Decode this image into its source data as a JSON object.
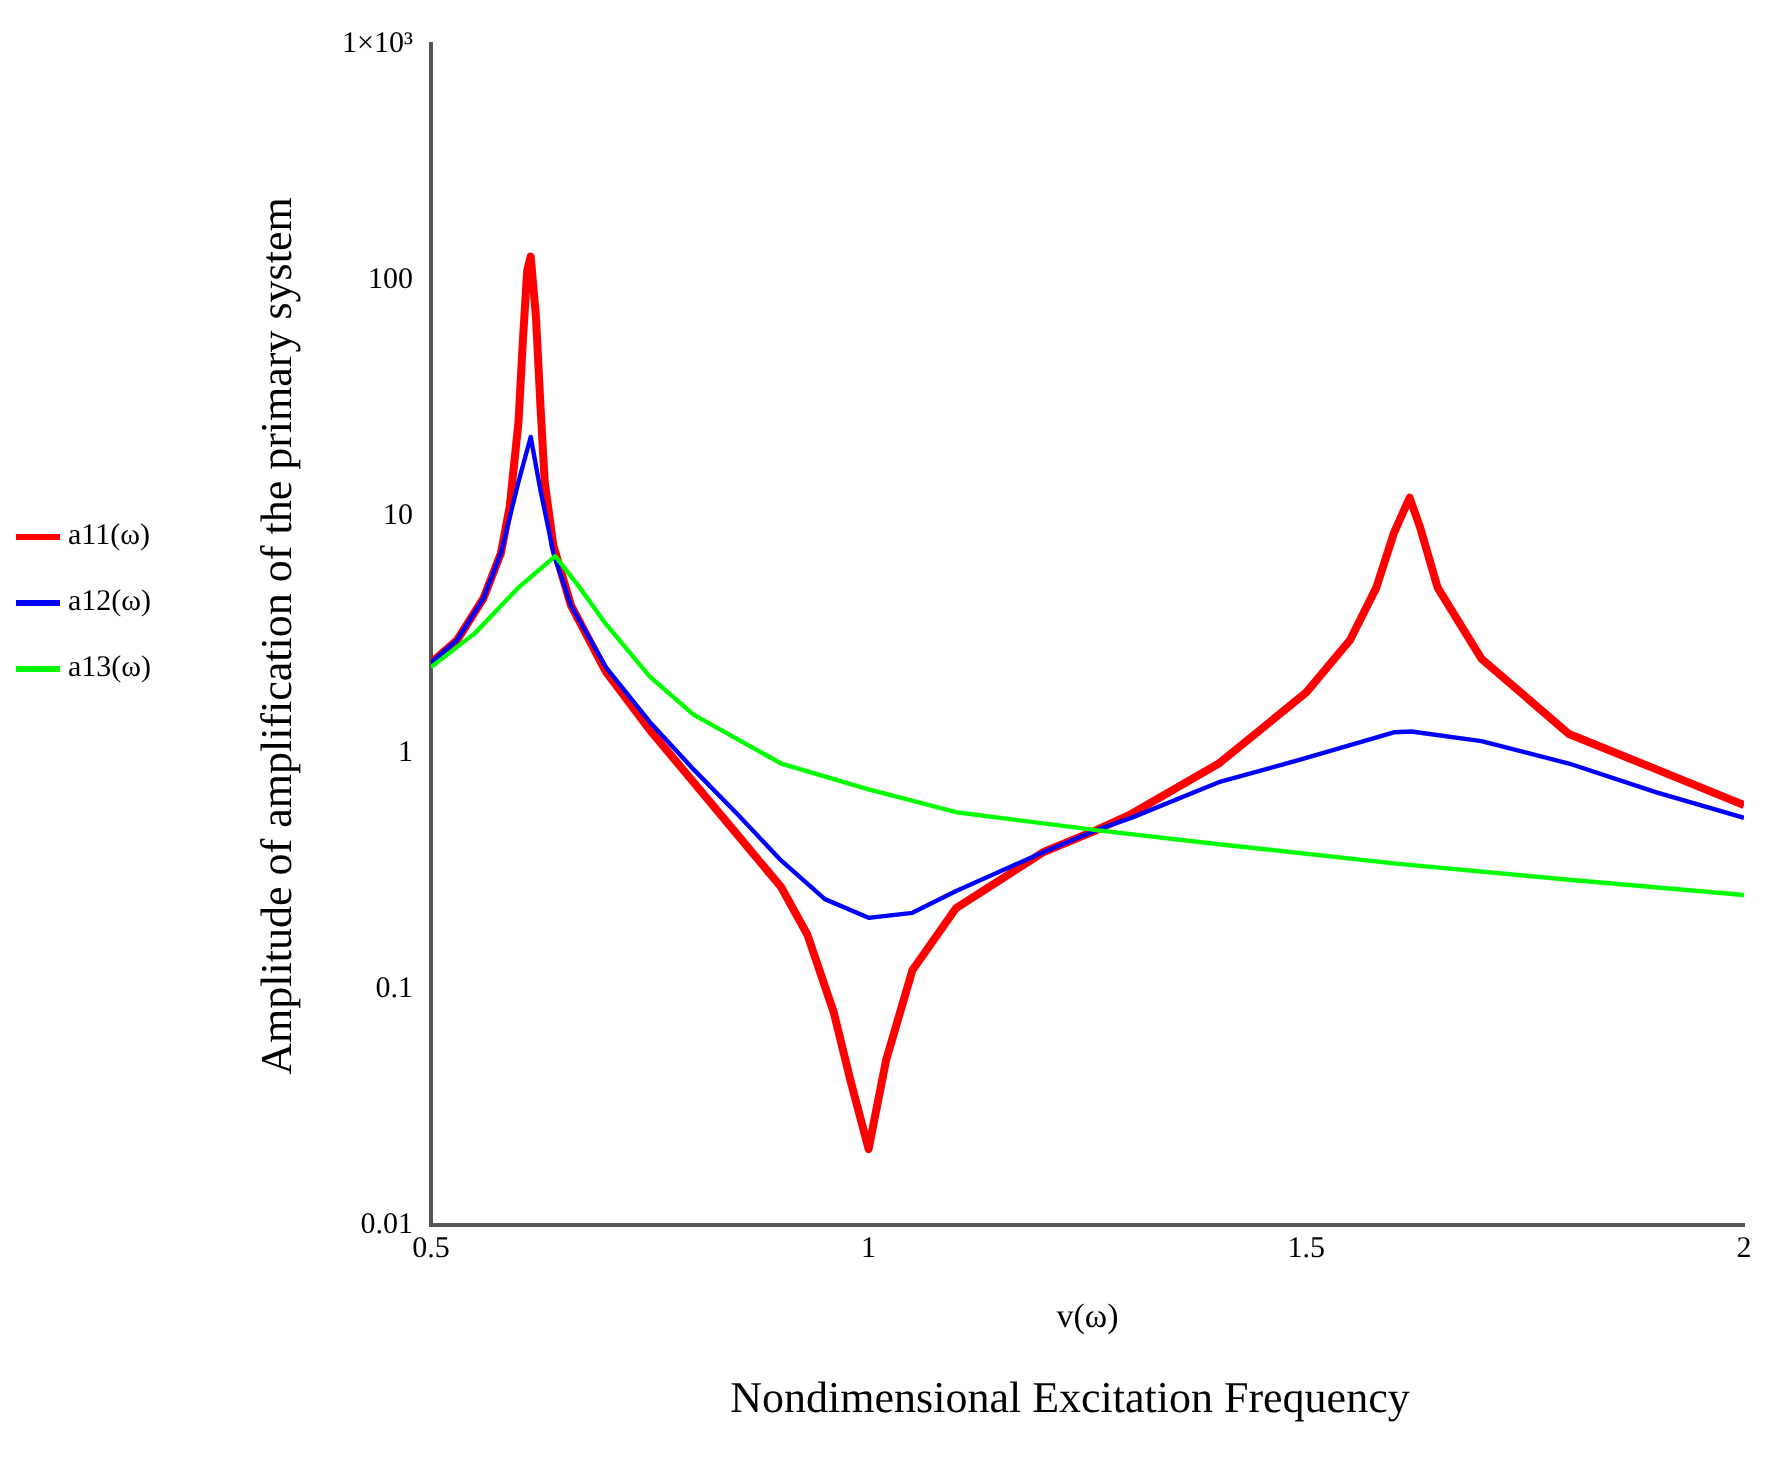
{
  "chart_data": {
    "type": "line",
    "xlabel": "v(ω)",
    "ylabel": "Amplitude of amplification of the primary system",
    "annotations": [
      "Nondimensional Excitation Frequency"
    ],
    "series": [
      {
        "name": "a11(ω)",
        "color": "#ff0000",
        "x": [
          0.5,
          0.53,
          0.56,
          0.58,
          0.59,
          0.6,
          0.605,
          0.61,
          0.614,
          0.62,
          0.625,
          0.63,
          0.64,
          0.66,
          0.7,
          0.75,
          0.8,
          0.85,
          0.9,
          0.93,
          0.96,
          0.98,
          1.0,
          1.02,
          1.05,
          1.1,
          1.2,
          1.26,
          1.3,
          1.4,
          1.5,
          1.55,
          1.58,
          1.6,
          1.618,
          1.63,
          1.65,
          1.7,
          1.8,
          1.9,
          2.0
        ],
        "values": [
          2.4,
          3.0,
          4.5,
          7,
          11,
          25,
          55,
          110,
          126,
          70,
          30,
          14,
          7.5,
          4.2,
          2.2,
          1.25,
          0.75,
          0.45,
          0.27,
          0.17,
          0.08,
          0.04,
          0.021,
          0.05,
          0.12,
          0.22,
          0.38,
          0.47,
          0.55,
          0.9,
          1.8,
          3.0,
          5,
          8.5,
          12,
          9,
          5,
          2.5,
          1.2,
          0.85,
          0.6
        ]
      },
      {
        "name": "a12(ω)",
        "color": "#0000ff",
        "x": [
          0.5,
          0.53,
          0.56,
          0.58,
          0.6,
          0.614,
          0.625,
          0.64,
          0.66,
          0.7,
          0.75,
          0.8,
          0.85,
          0.9,
          0.95,
          1.0,
          1.05,
          1.1,
          1.2,
          1.26,
          1.3,
          1.4,
          1.5,
          1.6,
          1.62,
          1.7,
          1.8,
          1.9,
          2.0
        ],
        "values": [
          2.4,
          3.0,
          4.5,
          7,
          14,
          21.7,
          13,
          7,
          4.2,
          2.3,
          1.35,
          0.85,
          0.55,
          0.35,
          0.24,
          0.2,
          0.21,
          0.26,
          0.38,
          0.47,
          0.53,
          0.75,
          0.95,
          1.22,
          1.23,
          1.12,
          0.9,
          0.68,
          0.53
        ]
      },
      {
        "name": "a13(ω)",
        "color": "#00ff00",
        "x": [
          0.5,
          0.55,
          0.6,
          0.642,
          0.67,
          0.7,
          0.75,
          0.8,
          0.9,
          1.0,
          1.1,
          1.26,
          1.4,
          1.6,
          1.8,
          2.0
        ],
        "values": [
          2.3,
          3.2,
          5,
          6.8,
          5,
          3.5,
          2.1,
          1.45,
          0.9,
          0.7,
          0.56,
          0.47,
          0.41,
          0.34,
          0.29,
          0.25
        ]
      }
    ],
    "xlim": [
      0.5,
      2
    ],
    "xticks": [
      0.5,
      1,
      1.5,
      2
    ],
    "ylim": [
      0.01,
      1000
    ],
    "yticks": [
      0.01,
      0.1,
      1,
      10,
      100,
      {
        "value": 1000,
        "label": "1×10³"
      }
    ],
    "log": "y",
    "grid": false,
    "legend": "left",
    "marker": "none",
    "line_style": "solid"
  }
}
